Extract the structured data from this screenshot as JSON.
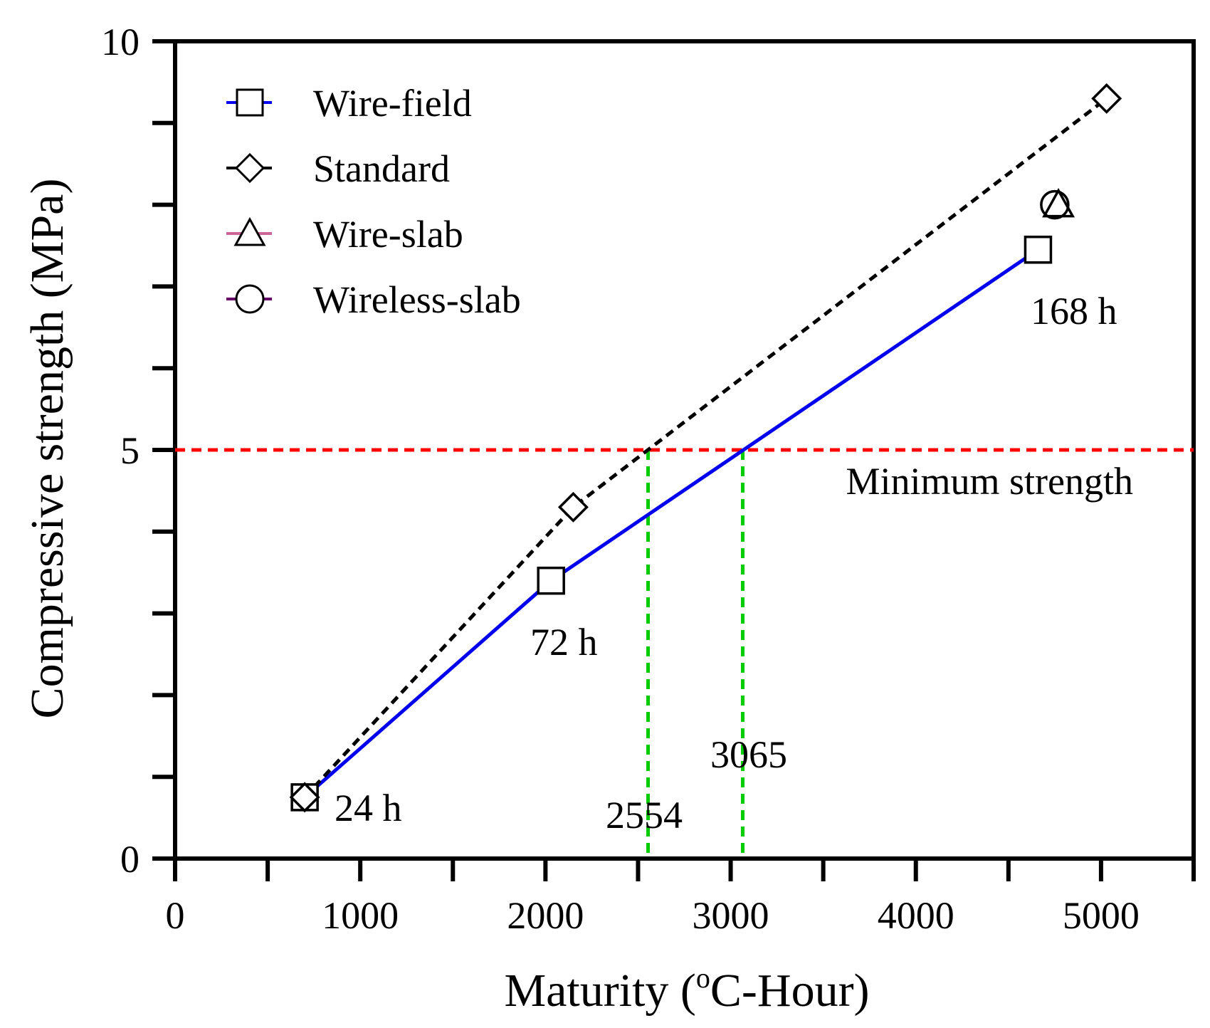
{
  "chart_data": {
    "type": "line",
    "xlabel_main": "Maturity (",
    "xlabel_sup": "o",
    "xlabel_rest": "C-Hour)",
    "ylabel": "Compressive strength (MPa)",
    "xlim": [
      0,
      5500
    ],
    "ylim": [
      0,
      10
    ],
    "x_ticks": [
      0,
      1000,
      2000,
      3000,
      4000,
      5000
    ],
    "x_minor_ticks": [
      500,
      1500,
      2500,
      3500,
      4500,
      5500
    ],
    "y_ticks": [
      0,
      5,
      10
    ],
    "y_minor_ticks": [
      1,
      2,
      3,
      4,
      6,
      7,
      8,
      9
    ],
    "grid": false,
    "legend_position": "top-left",
    "series": [
      {
        "name": "Wire-field",
        "marker": "square",
        "color": "#0000ee",
        "dash": "solid",
        "x": [
          700,
          2030,
          4660
        ],
        "y": [
          0.75,
          3.4,
          7.45
        ]
      },
      {
        "name": "Standard",
        "marker": "diamond",
        "color": "#000000",
        "dash": "dashed",
        "x": [
          700,
          2150,
          5030
        ],
        "y": [
          0.75,
          4.3,
          9.3
        ]
      },
      {
        "name": "Wire-slab",
        "marker": "triangle",
        "color": "#cc6699",
        "dash": "solid",
        "x": [
          4770
        ],
        "y": [
          8.0
        ]
      },
      {
        "name": "Wireless-slab",
        "marker": "circle",
        "color": "#660066",
        "dash": "solid",
        "x": [
          4750
        ],
        "y": [
          8.0
        ]
      }
    ],
    "threshold": {
      "y": 5,
      "color": "#ff0000",
      "label": "Minimum strength"
    },
    "crossings": [
      {
        "x": 2554,
        "label": "2554",
        "color": "#00cc00"
      },
      {
        "x": 3065,
        "label": "3065",
        "color": "#00cc00"
      }
    ],
    "annotations": [
      {
        "text": "24 h"
      },
      {
        "text": "72 h"
      },
      {
        "text": "168 h"
      }
    ]
  }
}
